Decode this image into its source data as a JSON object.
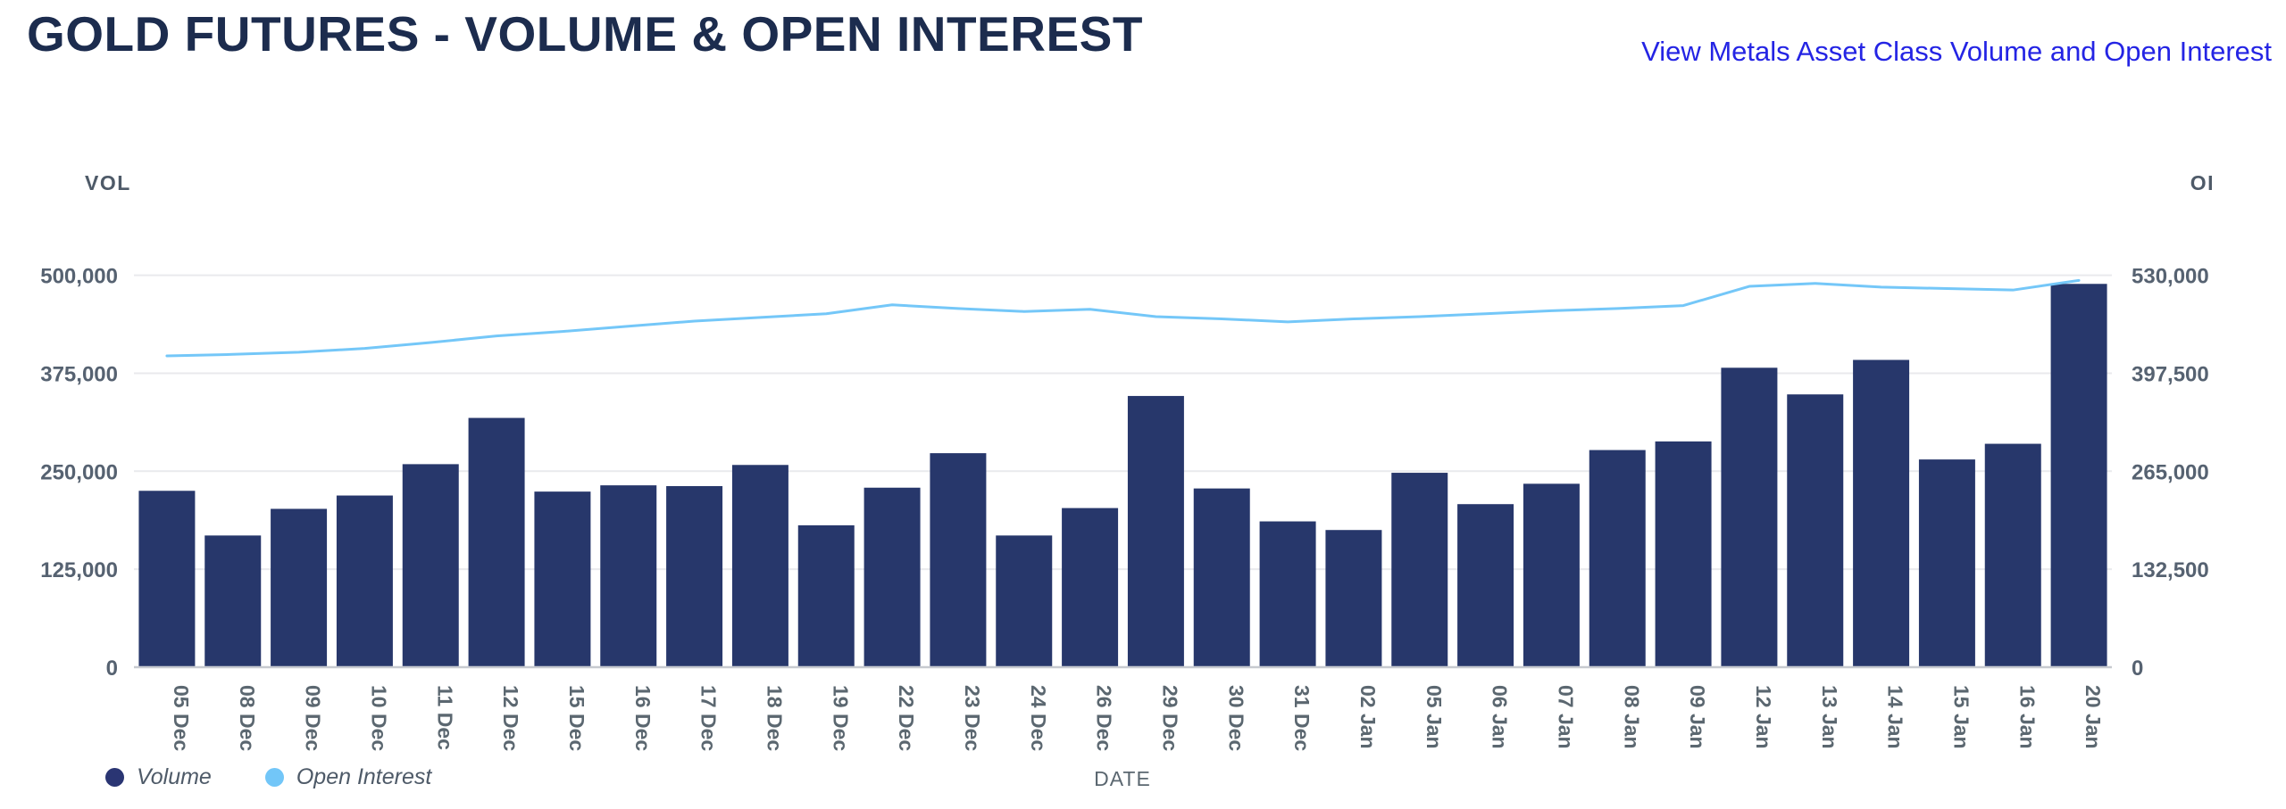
{
  "header": {
    "title": "GOLD FUTURES - VOLUME & OPEN INTEREST",
    "link_label": "View Metals Asset Class Volume and Open Interest"
  },
  "chart": {
    "left_axis_title": "VOL",
    "right_axis_title": "OI",
    "x_axis_title": "DATE",
    "legend": [
      {
        "label": "Volume",
        "color": "#2a3573"
      },
      {
        "label": "Open Interest",
        "color": "#72c6f8"
      }
    ]
  },
  "chart_data": {
    "type": "bar",
    "title": "GOLD FUTURES - VOLUME & OPEN INTEREST",
    "categories": [
      "05 Dec",
      "08 Dec",
      "09 Dec",
      "10 Dec",
      "11 Dec",
      "12 Dec",
      "15 Dec",
      "16 Dec",
      "17 Dec",
      "18 Dec",
      "19 Dec",
      "22 Dec",
      "23 Dec",
      "24 Dec",
      "26 Dec",
      "29 Dec",
      "30 Dec",
      "31 Dec",
      "02 Jan",
      "05 Jan",
      "06 Jan",
      "07 Jan",
      "08 Jan",
      "09 Jan",
      "12 Jan",
      "13 Jan",
      "14 Jan",
      "15 Jan",
      "16 Jan",
      "20 Jan"
    ],
    "series": [
      {
        "name": "Volume",
        "type": "bar",
        "axis": "left",
        "color": "#27376b",
        "values": [
          225000,
          168000,
          202000,
          219000,
          259000,
          318000,
          224000,
          232000,
          231000,
          258000,
          181000,
          229000,
          273000,
          168000,
          203000,
          346000,
          228000,
          186000,
          175000,
          248000,
          208000,
          234000,
          277000,
          288000,
          382000,
          348000,
          392000,
          265000,
          285000,
          489000
        ]
      },
      {
        "name": "Open Interest",
        "type": "line",
        "axis": "right",
        "color": "#74c7f8",
        "values": [
          421000,
          423000,
          426000,
          431000,
          439000,
          448000,
          454000,
          461000,
          468000,
          473000,
          478000,
          490000,
          485000,
          481000,
          484000,
          474000,
          471000,
          467000,
          471000,
          474000,
          478000,
          482000,
          485000,
          489000,
          515000,
          519000,
          514000,
          512000,
          510000,
          523000
        ]
      }
    ],
    "left_axis": {
      "title": "VOL",
      "range": [
        0,
        500000
      ],
      "ticks": [
        0,
        125000,
        250000,
        375000,
        500000
      ],
      "tick_labels": [
        "0",
        "125,000",
        "250,000",
        "375,000",
        "500,000"
      ]
    },
    "right_axis": {
      "title": "OI",
      "range": [
        0,
        530000
      ],
      "ticks": [
        0,
        132500,
        265000,
        397500,
        530000
      ],
      "tick_labels": [
        "0",
        "132,500",
        "265,000",
        "397,500",
        "530,000"
      ]
    },
    "x_axis": {
      "title": "DATE"
    },
    "grid": true,
    "legend_position": "bottom-left"
  },
  "colors": {
    "title": "#1c2c4e",
    "link": "#2424e4",
    "tick_text": "#566271",
    "gridline": "#e9eaed",
    "axis_line": "#c7cad0"
  }
}
